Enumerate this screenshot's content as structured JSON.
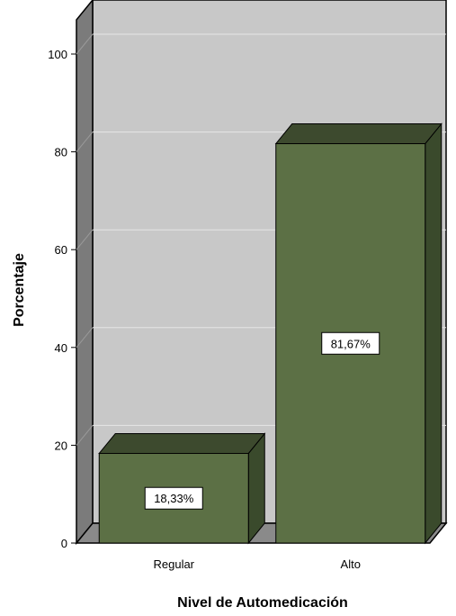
{
  "chart_data": {
    "type": "bar",
    "categories": [
      "Regular",
      "Alto"
    ],
    "values": [
      18.33,
      81.67
    ],
    "data_labels": [
      "18,33%",
      "81,67%"
    ],
    "xlabel": "Nivel de Automedicación",
    "ylabel": "Porcentaje",
    "ylim": [
      0,
      100
    ],
    "yticks": [
      0,
      20,
      40,
      60,
      80,
      100
    ],
    "grid": true,
    "style": "3d",
    "colors": {
      "bar_front": "#5c7045",
      "bar_top": "#3d4a2e",
      "bar_side": "#3a4a2c",
      "plot_back": "#c8c8c8",
      "left_wall": "#7b7b7b",
      "floor": "#8a8a8a",
      "grid": "#e6e6e6"
    }
  }
}
